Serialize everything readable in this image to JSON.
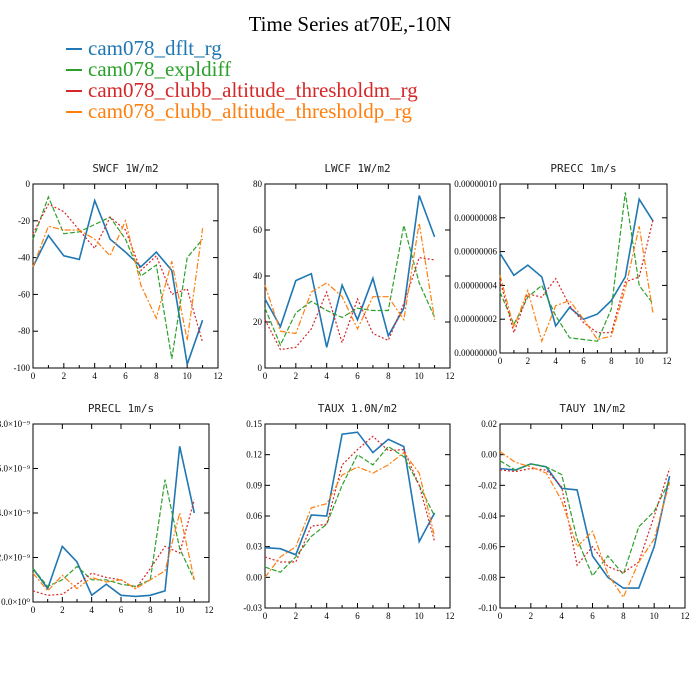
{
  "title": "Time Series at70E,-10N",
  "legend": [
    {
      "label": "cam078_dflt_rg",
      "color": "#1f77b4"
    },
    {
      "label": "cam078_expldiff",
      "color": "#2ca02c"
    },
    {
      "label": "cam078_clubb_altitude_thresholdm_rg",
      "color": "#d62728"
    },
    {
      "label": "cam078_clubb_altitude_thresholdp_rg",
      "color": "#ff7f0e"
    }
  ],
  "chart_data": [
    {
      "type": "line",
      "title": "SWCF   1W/m2",
      "x": [
        0,
        1,
        2,
        3,
        4,
        5,
        6,
        7,
        8,
        9,
        10,
        11
      ],
      "xlim": [
        0,
        12
      ],
      "xticks": [
        0,
        2,
        4,
        6,
        8,
        10,
        12
      ],
      "ylim": [
        -100,
        0
      ],
      "yticks": [
        -100,
        -80,
        -60,
        -40,
        -20,
        0
      ],
      "ytick_labels": [
        "-100",
        "-80",
        "-60",
        "-40",
        "-20",
        "0"
      ],
      "series": [
        {
          "name": "cam078_dflt_rg",
          "values": [
            -45,
            -28,
            -39,
            -41,
            -9,
            -30,
            -37,
            -45,
            -37,
            -47,
            -98,
            -74
          ]
        },
        {
          "name": "cam078_expldiff",
          "values": [
            -30,
            -7,
            -27,
            -26,
            -22,
            -18,
            -30,
            -50,
            -44,
            -95,
            -40,
            -30
          ]
        },
        {
          "name": "cam078_clubb_altitude_thresholdm_rg",
          "values": [
            -27,
            -11,
            -15,
            -25,
            -35,
            -18,
            -25,
            -47,
            -39,
            -60,
            -57,
            -86
          ]
        },
        {
          "name": "cam078_clubb_altitude_thresholdp_rg",
          "values": [
            -45,
            -23,
            -25,
            -25,
            -30,
            -39,
            -20,
            -55,
            -73,
            -42,
            -85,
            -24
          ]
        }
      ]
    },
    {
      "type": "line",
      "title": "LWCF   1W/m2",
      "x": [
        0,
        1,
        2,
        3,
        4,
        5,
        6,
        7,
        8,
        9,
        10,
        11
      ],
      "xlim": [
        0,
        12
      ],
      "xticks": [
        0,
        2,
        4,
        6,
        8,
        10,
        12
      ],
      "ylim": [
        0,
        80
      ],
      "yticks": [
        0,
        20,
        40,
        60,
        80
      ],
      "ytick_labels": [
        "0",
        "20",
        "40",
        "60",
        "80"
      ],
      "series": [
        {
          "name": "cam078_dflt_rg",
          "values": [
            30,
            18,
            38,
            41,
            9,
            36,
            21,
            39,
            14,
            26,
            75,
            57
          ]
        },
        {
          "name": "cam078_expldiff",
          "values": [
            26,
            10,
            24,
            29,
            25,
            22,
            26,
            25,
            25,
            62,
            37,
            22
          ]
        },
        {
          "name": "cam078_clubb_altitude_thresholdm_rg",
          "values": [
            21,
            8,
            9,
            17,
            33,
            11,
            30,
            15,
            12,
            28,
            48,
            47
          ]
        },
        {
          "name": "cam078_clubb_altitude_thresholdp_rg",
          "values": [
            36,
            16,
            15,
            33,
            37,
            31,
            17,
            31,
            31,
            21,
            63,
            21
          ]
        }
      ]
    },
    {
      "type": "line",
      "title": "PRECC   1m/s",
      "x": [
        0,
        1,
        2,
        3,
        4,
        5,
        6,
        7,
        8,
        9,
        10,
        11
      ],
      "xlim": [
        0,
        12
      ],
      "xticks": [
        0,
        2,
        4,
        6,
        8,
        10,
        12
      ],
      "ylim": [
        0,
        1e-07
      ],
      "yticks": [
        0,
        2e-08,
        4e-08,
        6e-08,
        8e-08,
        1e-07
      ],
      "ytick_labels": [
        "0.00000000",
        "0.00000002",
        "0.00000004",
        "0.00000006",
        "0.00000008",
        "0.00000010"
      ],
      "series": [
        {
          "name": "cam078_dflt_rg",
          "values": [
            5.9e-08,
            4.6e-08,
            5.2e-08,
            4.5e-08,
            1.6e-08,
            2.7e-08,
            2e-08,
            2.3e-08,
            3.1e-08,
            4.5e-08,
            9.1e-08,
            7.8e-08
          ]
        },
        {
          "name": "cam078_expldiff",
          "values": [
            3.6e-08,
            1.7e-08,
            3.3e-08,
            4e-08,
            2.2e-08,
            9e-09,
            8e-09,
            7e-09,
            2.6e-08,
            9.5e-08,
            4e-08,
            2.9e-08
          ]
        },
        {
          "name": "cam078_clubb_altitude_thresholdm_rg",
          "values": [
            4.3e-08,
            1.2e-08,
            3.5e-08,
            3.3e-08,
            4.4e-08,
            2.8e-08,
            1.8e-08,
            1.2e-08,
            1.2e-08,
            4.2e-08,
            4.5e-08,
            7.9e-08
          ]
        },
        {
          "name": "cam078_clubb_altitude_thresholdp_rg",
          "values": [
            4.6e-08,
            1.5e-08,
            3.7e-08,
            7e-09,
            2.8e-08,
            3.1e-08,
            2e-08,
            8e-09,
            1e-08,
            3.8e-08,
            7.5e-08,
            2.3e-08
          ]
        }
      ]
    },
    {
      "type": "line",
      "title": "PRECL   1m/s",
      "x": [
        0,
        1,
        2,
        3,
        4,
        5,
        6,
        7,
        8,
        9,
        10,
        11
      ],
      "xlim": [
        0,
        12
      ],
      "xticks": [
        0,
        2,
        4,
        6,
        8,
        10,
        12
      ],
      "ylim": [
        0,
        8e-09
      ],
      "yticks": [
        0,
        2e-09,
        4e-09,
        6e-09,
        8e-09
      ],
      "ytick_labels": [
        "0.0×10⁰",
        "2.0×10⁻⁹",
        "4.0×10⁻⁹",
        "6.0×10⁻⁹",
        "8.0×10⁻⁹"
      ],
      "series": [
        {
          "name": "cam078_dflt_rg",
          "values": [
            1.5e-09,
            6e-10,
            2.5e-09,
            1.8e-09,
            3e-10,
            8e-10,
            3e-10,
            2.5e-10,
            3e-10,
            5e-10,
            7e-09,
            4e-09
          ]
        },
        {
          "name": "cam078_expldiff",
          "values": [
            1.5e-09,
            7e-10,
            1e-09,
            1.6e-09,
            1e-09,
            1e-09,
            8e-10,
            7e-10,
            1e-09,
            5.5e-09,
            2.4e-09,
            1e-09
          ]
        },
        {
          "name": "cam078_clubb_altitude_thresholdm_rg",
          "values": [
            5e-10,
            3e-10,
            3.5e-10,
            8e-10,
            1.3e-09,
            1.1e-09,
            1e-09,
            6e-10,
            1.5e-09,
            2.5e-09,
            2.2e-09,
            4.6e-09
          ]
        },
        {
          "name": "cam078_clubb_altitude_thresholdp_rg",
          "values": [
            1.3e-09,
            5e-10,
            1.2e-09,
            6e-10,
            1.1e-09,
            9e-10,
            1e-09,
            6e-10,
            1e-09,
            1.4e-09,
            4e-09,
            1e-09
          ]
        }
      ]
    },
    {
      "type": "line",
      "title": "TAUX   1.0N/m2",
      "x": [
        0,
        1,
        2,
        3,
        4,
        5,
        6,
        7,
        8,
        9,
        10,
        11
      ],
      "xlim": [
        0,
        12
      ],
      "xticks": [
        0,
        2,
        4,
        6,
        8,
        10,
        12
      ],
      "ylim": [
        -0.03,
        0.15
      ],
      "yticks": [
        -0.03,
        0,
        0.03,
        0.06,
        0.09,
        0.12,
        0.15
      ],
      "ytick_labels": [
        "-0.03",
        "0.00",
        "0.03",
        "0.06",
        "0.09",
        "0.12",
        "0.15"
      ],
      "series": [
        {
          "name": "cam078_dflt_rg",
          "values": [
            0.029,
            0.028,
            0.022,
            0.061,
            0.06,
            0.14,
            0.142,
            0.122,
            0.135,
            0.128,
            0.035,
            0.063
          ]
        },
        {
          "name": "cam078_expldiff",
          "values": [
            0.01,
            0.005,
            0.02,
            0.04,
            0.052,
            0.09,
            0.12,
            0.11,
            0.128,
            0.118,
            0.09,
            0.06
          ]
        },
        {
          "name": "cam078_clubb_altitude_thresholdm_rg",
          "values": [
            0.02,
            0.015,
            0.015,
            0.05,
            0.052,
            0.11,
            0.125,
            0.138,
            0.124,
            0.125,
            0.09,
            0.035
          ]
        },
        {
          "name": "cam078_clubb_altitude_thresholdp_rg",
          "values": [
            0.0,
            0.02,
            0.03,
            0.068,
            0.072,
            0.1,
            0.108,
            0.102,
            0.11,
            0.122,
            0.102,
            0.04
          ]
        }
      ]
    },
    {
      "type": "line",
      "title": "TAUY   1N/m2",
      "x": [
        0,
        1,
        2,
        3,
        4,
        5,
        6,
        7,
        8,
        9,
        10,
        11
      ],
      "xlim": [
        0,
        12
      ],
      "xticks": [
        0,
        2,
        4,
        6,
        8,
        10,
        12
      ],
      "ylim": [
        -0.1,
        0.02
      ],
      "yticks": [
        -0.1,
        -0.08,
        -0.06,
        -0.04,
        -0.02,
        0.0,
        0.02
      ],
      "ytick_labels": [
        "-0.10",
        "-0.08",
        "-0.06",
        "-0.04",
        "-0.02",
        "0.00",
        "0.02"
      ],
      "series": [
        {
          "name": "cam078_dflt_rg",
          "values": [
            -0.009,
            -0.01,
            -0.006,
            -0.008,
            -0.022,
            -0.023,
            -0.066,
            -0.08,
            -0.087,
            -0.087,
            -0.06,
            -0.014
          ]
        },
        {
          "name": "cam078_expldiff",
          "values": [
            -0.004,
            -0.01,
            -0.006,
            -0.008,
            -0.013,
            -0.055,
            -0.079,
            -0.066,
            -0.078,
            -0.047,
            -0.037,
            -0.017
          ]
        },
        {
          "name": "cam078_clubb_altitude_thresholdm_rg",
          "values": [
            -0.01,
            -0.011,
            -0.009,
            -0.01,
            -0.021,
            -0.072,
            -0.06,
            -0.073,
            -0.077,
            -0.07,
            -0.04,
            -0.009
          ]
        },
        {
          "name": "cam078_clubb_altitude_thresholdp_rg",
          "values": [
            0.002,
            -0.005,
            -0.008,
            -0.012,
            -0.03,
            -0.06,
            -0.05,
            -0.078,
            -0.093,
            -0.07,
            -0.055,
            -0.018
          ]
        }
      ]
    }
  ]
}
